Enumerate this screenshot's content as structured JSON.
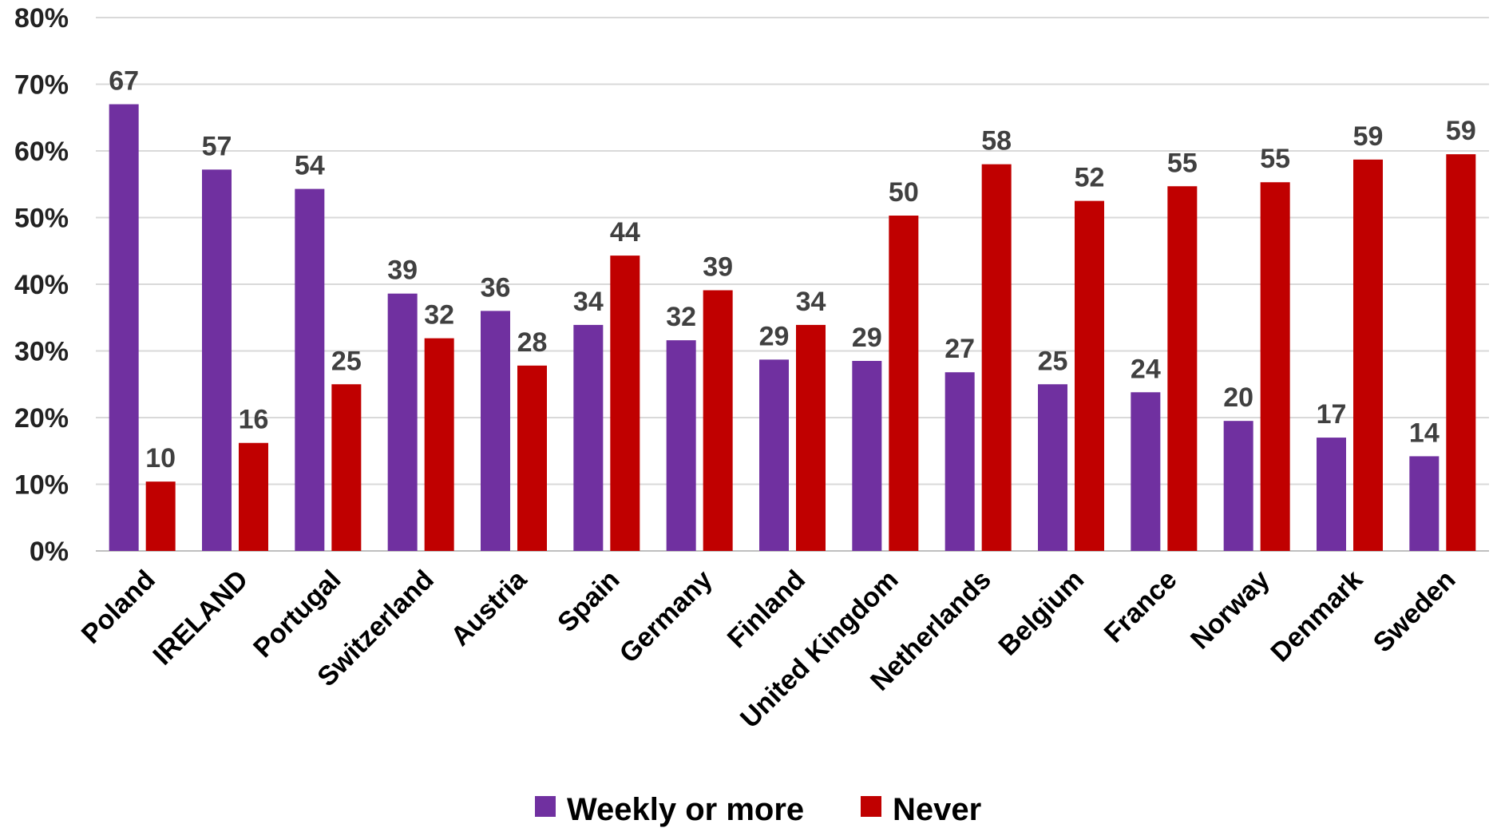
{
  "chart_data": {
    "type": "bar",
    "title": "",
    "xlabel": "",
    "ylabel": "",
    "ylim": [
      0,
      80
    ],
    "y_ticks": [
      0,
      10,
      20,
      30,
      40,
      50,
      60,
      70,
      80
    ],
    "y_tick_format": "%",
    "grid": true,
    "legend_position": "bottom",
    "categories": [
      "Poland",
      "IRELAND",
      "Portugal",
      "Switzerland",
      "Austria",
      "Spain",
      "Germany",
      "Finland",
      "United Kingdom",
      "Netherlands",
      "Belgium",
      "France",
      "Norway",
      "Denmark",
      "Sweden"
    ],
    "series": [
      {
        "name": "Weekly or more",
        "color": "#7030a0",
        "values": [
          67,
          57.2,
          54.3,
          38.6,
          36,
          33.9,
          31.6,
          28.7,
          28.5,
          26.8,
          25,
          23.8,
          19.5,
          17,
          14.2
        ],
        "labels": [
          "67",
          "57",
          "54",
          "39",
          "36",
          "34",
          "32",
          "29",
          "29",
          "27",
          "25",
          "24",
          "20",
          "17",
          "14"
        ]
      },
      {
        "name": "Never",
        "color": "#c00000",
        "values": [
          10.4,
          16.2,
          25,
          31.9,
          27.8,
          44.3,
          39.1,
          33.9,
          50.3,
          58,
          52.5,
          54.7,
          55.3,
          58.7,
          59.5
        ],
        "labels": [
          "10",
          "16",
          "25",
          "32",
          "28",
          "44",
          "39",
          "34",
          "50",
          "58",
          "52",
          "55",
          "55",
          "59",
          "59"
        ]
      }
    ]
  }
}
